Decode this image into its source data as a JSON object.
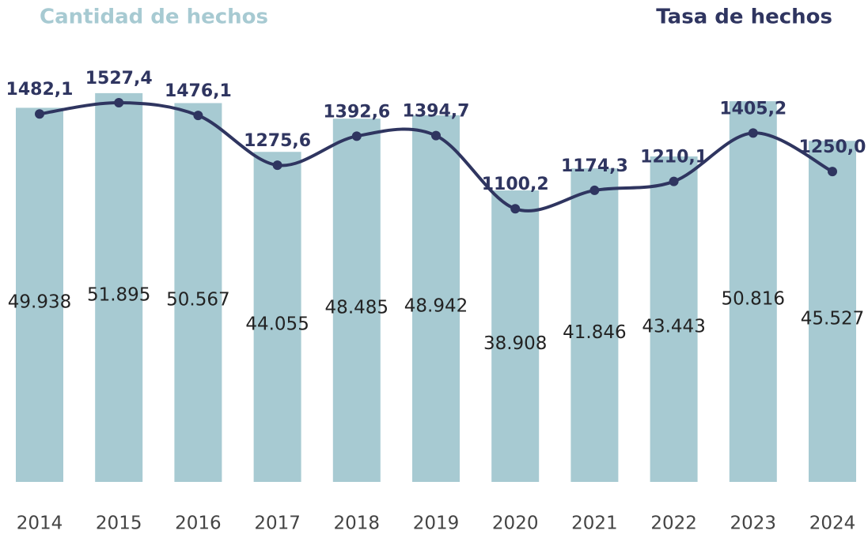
{
  "chart_data": {
    "type": "bar+line",
    "categories": [
      "2014",
      "2015",
      "2016",
      "2017",
      "2018",
      "2019",
      "2020",
      "2021",
      "2022",
      "2023",
      "2024"
    ],
    "series": [
      {
        "name": "Cantidad de hechos",
        "type": "bar",
        "color": "#a7cad2",
        "values": [
          49938,
          51895,
          50567,
          44055,
          48485,
          48942,
          38908,
          41846,
          43443,
          50816,
          45527
        ],
        "value_labels": [
          "49.938",
          "51.895",
          "50.567",
          "44.055",
          "48.485",
          "48.942",
          "38.908",
          "41.846",
          "43.443",
          "50.816",
          "45.527"
        ]
      },
      {
        "name": "Tasa de hechos",
        "type": "line",
        "axis": "y2",
        "color": "#2f3560",
        "values": [
          1482.1,
          1527.4,
          1476.1,
          1275.6,
          1392.6,
          1394.7,
          1100.2,
          1174.3,
          1210.1,
          1405.2,
          1250.0
        ],
        "value_labels": [
          "1482,1",
          "1527,4",
          "1476,1",
          "1275,6",
          "1392,6",
          "1394,7",
          "1100,2",
          "1174,3",
          "1210,1",
          "1405,2",
          "1250,0"
        ]
      }
    ],
    "ylim": [
      0,
      58000
    ],
    "y2lim": [
      0,
      1750
    ]
  }
}
